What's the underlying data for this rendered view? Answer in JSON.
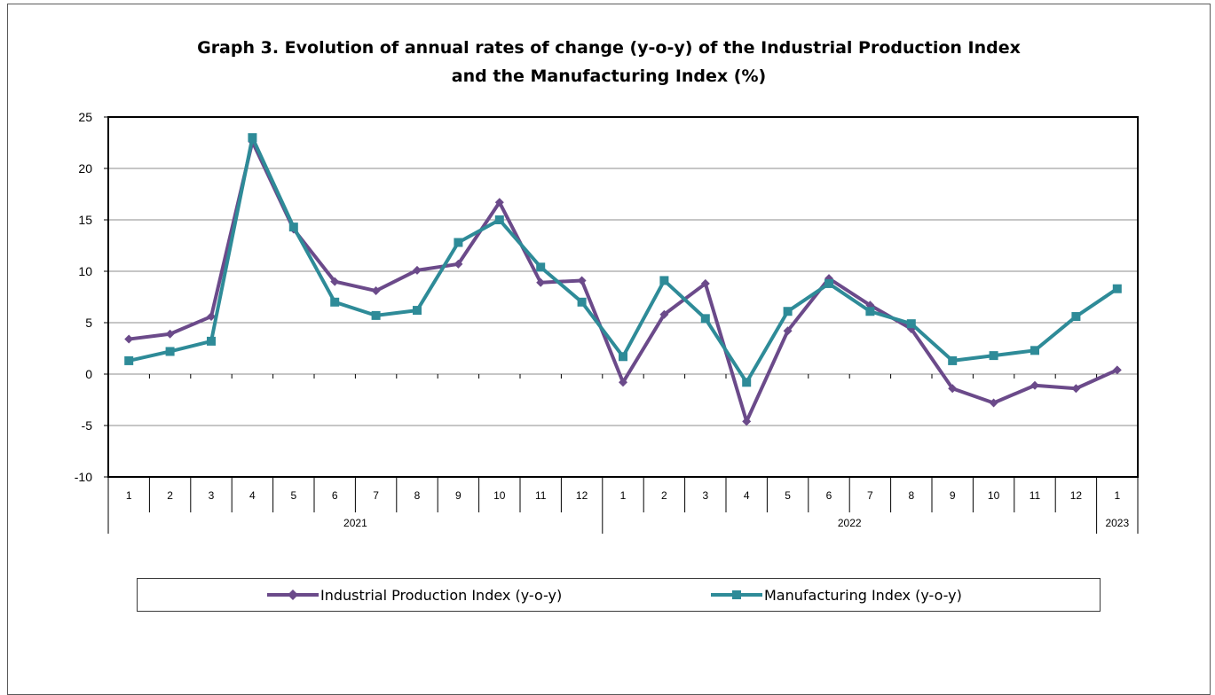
{
  "chart_data": {
    "type": "line",
    "title_line1": "Graph 3. Evolution of annual rates of change (y-o-y) of the Industrial Production Index",
    "title_line2": "and the Manufacturing Index (%)",
    "ylim": [
      -10,
      25
    ],
    "yticks": [
      -10,
      -5,
      0,
      5,
      10,
      15,
      20,
      25
    ],
    "grid": true,
    "legend_position": "bottom",
    "categories": [
      "1",
      "2",
      "3",
      "4",
      "5",
      "6",
      "7",
      "8",
      "9",
      "10",
      "11",
      "12",
      "1",
      "2",
      "3",
      "4",
      "5",
      "6",
      "7",
      "8",
      "9",
      "10",
      "11",
      "12",
      "1"
    ],
    "year_groups": [
      {
        "label": "2021",
        "start": 0,
        "end": 11
      },
      {
        "label": "2022",
        "start": 12,
        "end": 23
      },
      {
        "label": "2023",
        "start": 24,
        "end": 24
      }
    ],
    "series": [
      {
        "name": "Industrial Production Index (y-o-y)",
        "color": "#6b4a8a",
        "marker": "diamond",
        "values": [
          3.4,
          3.9,
          5.6,
          22.6,
          14.1,
          9.0,
          8.1,
          10.1,
          10.7,
          16.7,
          8.9,
          9.1,
          -0.8,
          5.8,
          8.8,
          -4.6,
          4.2,
          9.3,
          6.7,
          4.4,
          -1.4,
          -2.8,
          -1.1,
          -1.4,
          0.4
        ]
      },
      {
        "name": "Manufacturing Index (y-o-y)",
        "color": "#2e8b98",
        "marker": "square",
        "values": [
          1.3,
          2.2,
          3.2,
          23.0,
          14.3,
          7.0,
          5.7,
          6.2,
          12.8,
          15.0,
          10.4,
          7.0,
          1.7,
          9.1,
          5.4,
          -0.8,
          6.1,
          8.8,
          6.1,
          4.9,
          1.3,
          1.8,
          2.3,
          5.6,
          8.3
        ]
      }
    ]
  }
}
